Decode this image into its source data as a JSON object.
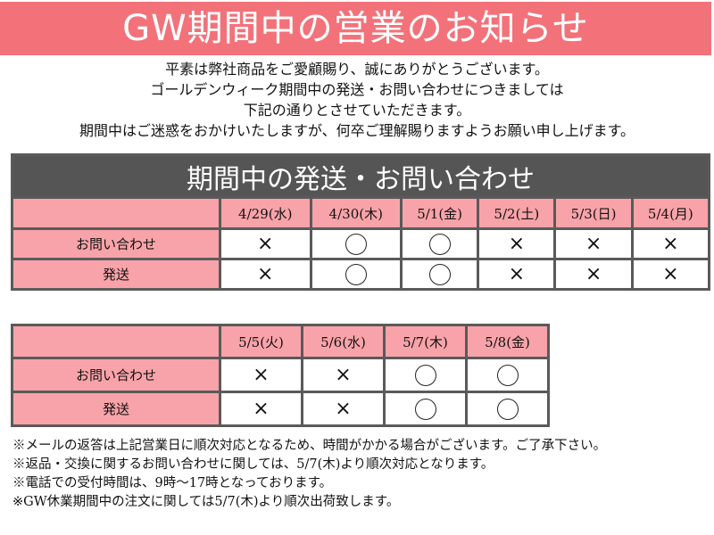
{
  "banner": {
    "title": "GW期間中の営業のお知らせ",
    "color": "#f3727a"
  },
  "intro": [
    "平素は弊社商品をご愛顧賜り、誠にありがとうございます。",
    "ゴールデンウィーク期間中の発送・お問い合わせにつきましては",
    "下記の通りとさせていただきます。",
    "期間中はご迷惑をおかけいたしますが、何卒ご理解賜りますようお願い申し上げます。"
  ],
  "table1": {
    "title": "期間中の発送・お問い合わせ",
    "days": [
      "4/29(水)",
      "4/30(木)",
      "5/1(金)",
      "5/2(土)",
      "5/3(日)",
      "5/4(月)"
    ],
    "rows": [
      {
        "label": "お問い合わせ",
        "values": [
          "×",
          "○",
          "○",
          "×",
          "×",
          "×"
        ]
      },
      {
        "label": "発送",
        "values": [
          "×",
          "○",
          "○",
          "×",
          "×",
          "×"
        ]
      }
    ]
  },
  "table2": {
    "days": [
      "5/5(火)",
      "5/6(水)",
      "5/7(木)",
      "5/8(金)"
    ],
    "rows": [
      {
        "label": "お問い合わせ",
        "values": [
          "×",
          "×",
          "○",
          "○"
        ]
      },
      {
        "label": "発送",
        "values": [
          "×",
          "×",
          "○",
          "○"
        ]
      }
    ]
  },
  "notes": [
    "※メールの返答は上記営業日に順次対応となるため、時間がかかる場合がございます。ご了承下さい。",
    "※返品・交換に関するお問い合わせに関しては、5/7(木)より順次対応となります。",
    "※電話での受付時間は、9時～17時となっております。",
    "※GW休業期間中の注文に関しては5/7(木)より順次出荷致します。"
  ],
  "colors": {
    "pink": "#f8a3a9",
    "header": "#555555"
  }
}
